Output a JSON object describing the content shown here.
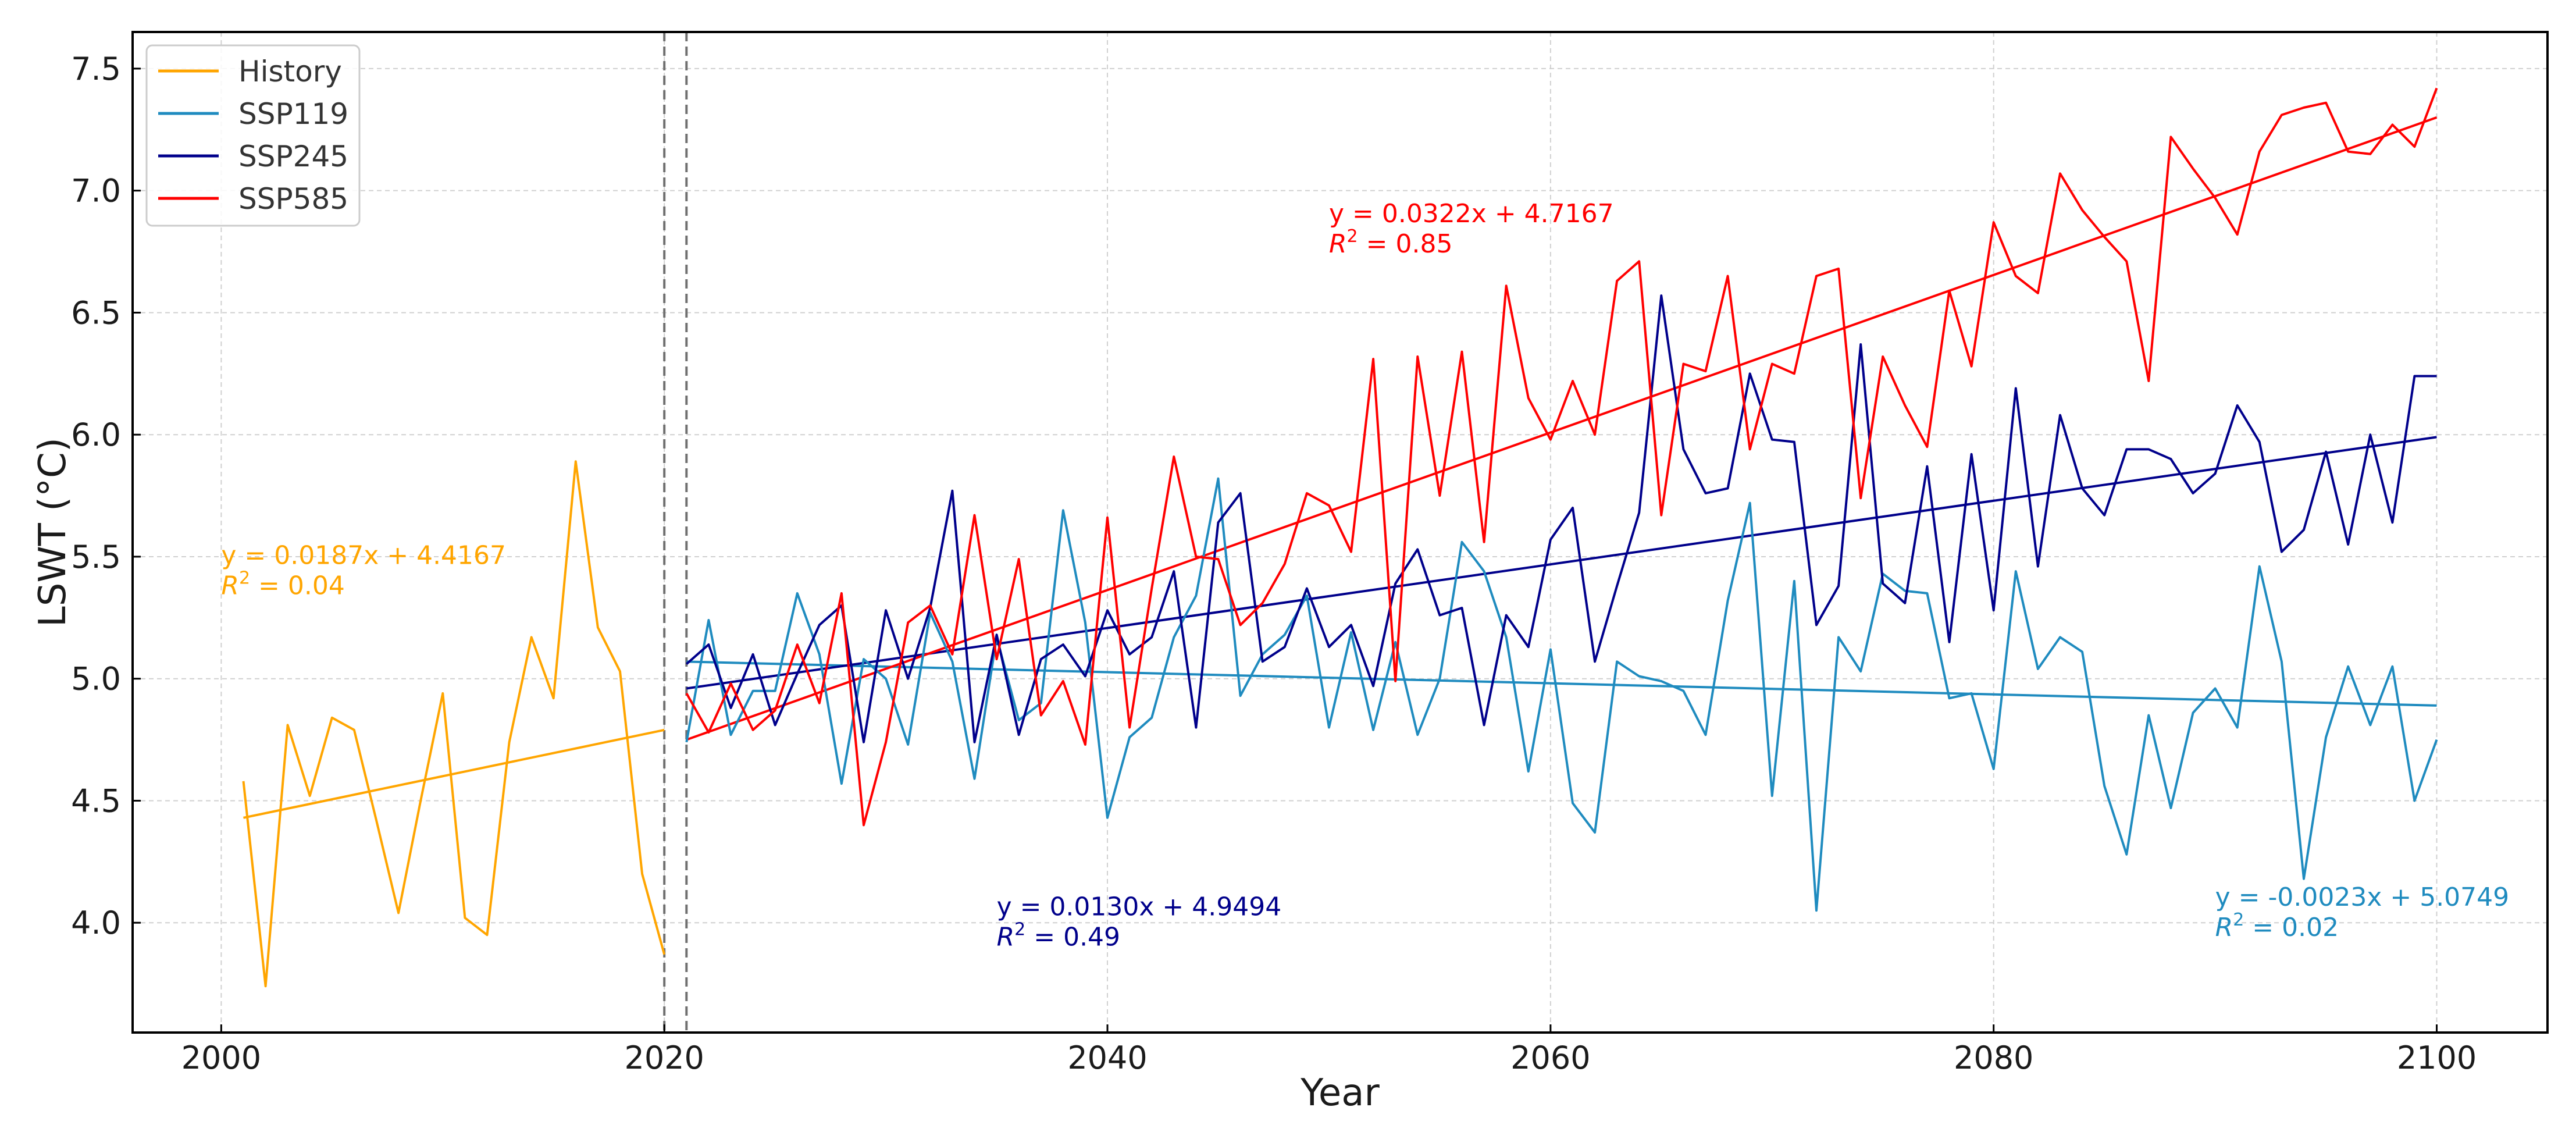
{
  "chart_data": {
    "type": "line",
    "title": "",
    "xlabel": "Year",
    "ylabel": "LSWT (°C)",
    "xlim": [
      1996,
      2105
    ],
    "ylim": [
      3.55,
      7.65
    ],
    "xticks": [
      2000,
      2020,
      2040,
      2060,
      2080,
      2100
    ],
    "xtick_labels": [
      "2000",
      "2020",
      "2040",
      "2060",
      "2080",
      "2100"
    ],
    "yticks": [
      4.0,
      4.5,
      5.0,
      5.5,
      6.0,
      6.5,
      7.0,
      7.5
    ],
    "ytick_labels": [
      "4.0",
      "4.5",
      "5.0",
      "5.5",
      "6.0",
      "6.5",
      "7.0",
      "7.5"
    ],
    "grid": true,
    "legend_position": "top-left",
    "vlines": [
      2020,
      2021
    ],
    "series": [
      {
        "name": "History",
        "color": "#FFA500",
        "x_start": 2001,
        "values": [
          4.58,
          3.74,
          4.81,
          4.52,
          4.84,
          4.79,
          4.42,
          4.04,
          4.5,
          4.94,
          4.02,
          3.95,
          4.74,
          5.17,
          4.92,
          5.89,
          5.21,
          5.03,
          4.2,
          3.87
        ],
        "trend": {
          "slope": 0.0187,
          "intercept": 4.4167,
          "x_from": 2001,
          "x_to": 2020,
          "y_from": 4.43,
          "y_to": 4.79
        }
      },
      {
        "name": "SSP119",
        "color": "#1F8BBF",
        "x_start": 2021,
        "values": [
          4.74,
          5.24,
          4.77,
          4.95,
          4.95,
          5.35,
          5.1,
          4.57,
          5.08,
          5.0,
          4.73,
          5.27,
          5.07,
          4.59,
          5.17,
          4.83,
          4.9,
          5.69,
          5.23,
          4.43,
          4.76,
          4.84,
          5.17,
          5.34,
          5.82,
          4.93,
          5.1,
          5.18,
          5.34,
          4.8,
          5.19,
          4.79,
          5.15,
          4.77,
          5.0,
          5.56,
          5.44,
          5.17,
          4.62,
          5.12,
          4.49,
          4.37,
          5.07,
          5.01,
          4.99,
          4.95,
          4.77,
          5.32,
          5.72,
          4.52,
          5.4,
          4.05,
          5.17,
          5.03,
          5.43,
          5.36,
          5.35,
          4.92,
          4.94,
          4.63,
          5.44,
          5.04,
          5.17,
          5.11,
          4.56,
          4.28,
          4.85,
          4.47,
          4.86,
          4.96,
          4.8,
          5.46,
          5.07,
          4.18,
          4.76,
          5.05,
          4.81,
          5.05,
          4.5,
          4.75
        ],
        "trend": {
          "slope": -0.0023,
          "intercept": 5.0749,
          "x_from": 2021,
          "x_to": 2100,
          "y_from": 5.07,
          "y_to": 4.89
        }
      },
      {
        "name": "SSP245",
        "color": "#00008B",
        "x_start": 2021,
        "values": [
          5.06,
          5.14,
          4.88,
          5.1,
          4.81,
          5.02,
          5.22,
          5.3,
          4.74,
          5.28,
          5.0,
          5.29,
          5.77,
          4.74,
          5.18,
          4.77,
          5.08,
          5.14,
          5.01,
          5.28,
          5.1,
          5.17,
          5.44,
          4.8,
          5.64,
          5.76,
          5.07,
          5.13,
          5.37,
          5.13,
          5.22,
          4.97,
          5.39,
          5.53,
          5.26,
          5.29,
          4.81,
          5.26,
          5.13,
          5.57,
          5.7,
          5.07,
          5.38,
          5.68,
          6.57,
          5.94,
          5.76,
          5.78,
          6.25,
          5.98,
          5.97,
          5.22,
          5.38,
          6.37,
          5.39,
          5.31,
          5.87,
          5.15,
          5.92,
          5.28,
          6.19,
          5.46,
          6.08,
          5.78,
          5.67,
          5.94,
          5.94,
          5.9,
          5.76,
          5.84,
          6.12,
          5.97,
          5.52,
          5.61,
          5.93,
          5.55,
          6.0,
          5.64,
          6.24,
          6.24
        ],
        "trend": {
          "slope": 0.013,
          "intercept": 4.9494,
          "x_from": 2021,
          "x_to": 2100,
          "y_from": 4.96,
          "y_to": 5.99
        }
      },
      {
        "name": "SSP585",
        "color": "#FF0000",
        "x_start": 2021,
        "values": [
          4.94,
          4.78,
          4.98,
          4.79,
          4.87,
          5.14,
          4.9,
          5.35,
          4.4,
          4.74,
          5.23,
          5.3,
          5.1,
          5.67,
          5.08,
          5.49,
          4.85,
          4.99,
          4.73,
          5.66,
          4.8,
          5.37,
          5.91,
          5.5,
          5.49,
          5.22,
          5.31,
          5.47,
          5.76,
          5.71,
          5.52,
          6.31,
          4.99,
          6.32,
          5.75,
          6.34,
          5.56,
          6.61,
          6.15,
          5.98,
          6.22,
          6.0,
          6.63,
          6.71,
          5.67,
          6.29,
          6.26,
          6.65,
          5.94,
          6.29,
          6.25,
          6.65,
          6.68,
          5.74,
          6.32,
          6.12,
          5.95,
          6.59,
          6.28,
          6.87,
          6.65,
          6.58,
          7.07,
          6.92,
          6.81,
          6.71,
          6.22,
          7.22,
          7.09,
          6.97,
          6.82,
          7.16,
          7.31,
          7.34,
          7.36,
          7.16,
          7.15,
          7.27,
          7.18,
          7.42
        ],
        "trend": {
          "slope": 0.0322,
          "intercept": 4.7167,
          "x_from": 2021,
          "x_to": 2100,
          "y_from": 4.75,
          "y_to": 7.3
        }
      }
    ],
    "annotations": [
      {
        "series": "History",
        "color": "#FFA500",
        "x": 2000,
        "y": 5.47,
        "eq": "y = 0.0187x + 4.4167",
        "r2": " = 0.04"
      },
      {
        "series": "SSP245",
        "color": "#00008B",
        "x": 2035,
        "y": 4.03,
        "eq": "y = 0.0130x + 4.9494",
        "r2": " = 0.49"
      },
      {
        "series": "SSP585",
        "color": "#FF0000",
        "x": 2050,
        "y": 6.87,
        "eq": "y = 0.0322x + 4.7167",
        "r2": " = 0.85"
      },
      {
        "series": "SSP119",
        "color": "#1F8BBF",
        "x": 2090,
        "y": 4.07,
        "eq": "y = -0.0023x + 5.0749",
        "r2": " = 0.02"
      }
    ]
  }
}
